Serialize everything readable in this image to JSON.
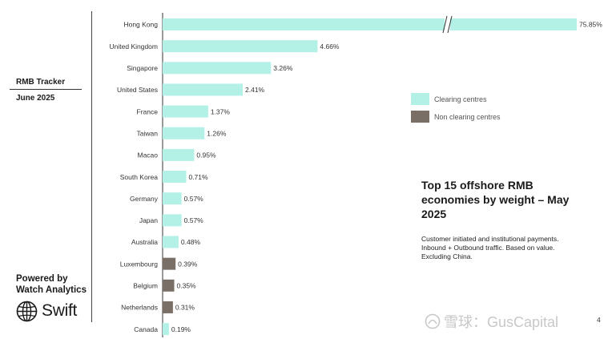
{
  "sidebar": {
    "tracker_title": "RMB Tracker",
    "tracker_date": "June 2025",
    "powered_by": "Powered by Watch Analytics",
    "brand_name": "Swift",
    "brand_icon": "globe-icon"
  },
  "headline": "Top 15 offshore RMB economies by weight – May 2025",
  "note": "Customer initiated and institutional payments. Inbound + Outbound traffic. Based on value. Excluding China.",
  "watermark": "雪球：GusCapital",
  "page_number": "4",
  "colors": {
    "clearing": "#b3f0e6",
    "non_clearing": "#7a6f66"
  },
  "chart_data": {
    "type": "bar",
    "orientation": "horizontal",
    "axis_break": true,
    "categories": [
      "Hong Kong",
      "United Kingdom",
      "Singapore",
      "United States",
      "France",
      "Taiwan",
      "Macao",
      "South Korea",
      "Germany",
      "Japan",
      "Australia",
      "Luxembourg",
      "Belgium",
      "Netherlands",
      "Canada"
    ],
    "values": [
      75.85,
      4.66,
      3.26,
      2.41,
      1.37,
      1.26,
      0.95,
      0.71,
      0.57,
      0.57,
      0.48,
      0.39,
      0.35,
      0.31,
      0.19
    ],
    "labels": [
      "75.85%",
      "4.66%",
      "3.26%",
      "2.41%",
      "1.37%",
      "1.26%",
      "0.95%",
      "0.71%",
      "0.57%",
      "0.57%",
      "0.48%",
      "0.39%",
      "0.35%",
      "0.31%",
      "0.19%"
    ],
    "group": [
      "clearing",
      "clearing",
      "clearing",
      "clearing",
      "clearing",
      "clearing",
      "clearing",
      "clearing",
      "clearing",
      "clearing",
      "clearing",
      "non_clearing",
      "non_clearing",
      "non_clearing",
      "clearing"
    ],
    "legend": [
      {
        "key": "clearing",
        "label": "Clearing centres"
      },
      {
        "key": "non_clearing",
        "label": "Non clearing centres"
      }
    ],
    "legend_position": "right",
    "grid": false
  }
}
